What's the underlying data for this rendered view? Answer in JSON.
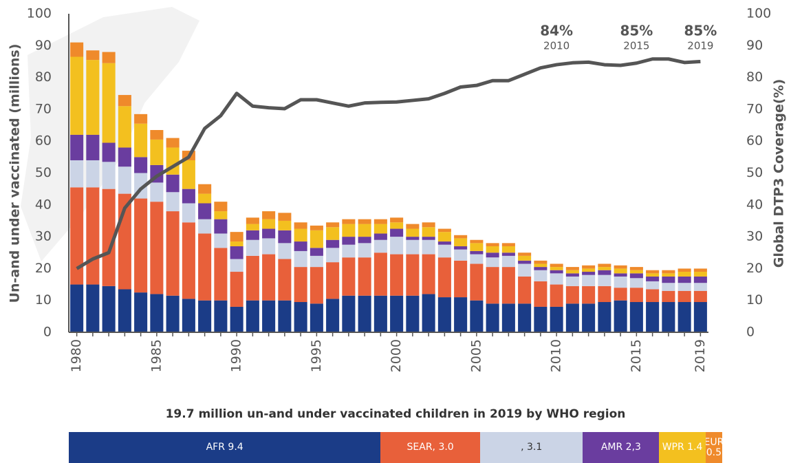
{
  "chart_data": [
    {
      "type": "stacked-bar-line",
      "y_label": "Un-and under vaccinated (millions)",
      "y2_label": "Global DTP3 Coverage(%)",
      "x": [
        1980,
        1981,
        1982,
        1983,
        1984,
        1985,
        1986,
        1987,
        1988,
        1989,
        1990,
        1991,
        1992,
        1993,
        1994,
        1995,
        1996,
        1997,
        1998,
        1999,
        2000,
        2001,
        2002,
        2003,
        2004,
        2005,
        2006,
        2007,
        2008,
        2009,
        2010,
        2011,
        2012,
        2013,
        2014,
        2015,
        2016,
        2017,
        2018,
        2019
      ],
      "xlim": [
        1979.5,
        2019.5
      ],
      "xticks": [
        1980,
        1985,
        1990,
        1995,
        2000,
        2005,
        2010,
        2015,
        2019
      ],
      "ylim": [
        0,
        100
      ],
      "yticks": [
        0,
        10,
        20,
        30,
        40,
        50,
        60,
        70,
        80,
        90,
        100
      ],
      "y2lim": [
        0,
        100
      ],
      "y2ticks": [
        0,
        10,
        20,
        30,
        40,
        50,
        60,
        70,
        80,
        90,
        100
      ],
      "series": [
        {
          "color": "#1b3c87",
          "values": [
            15,
            15,
            14.5,
            13.5,
            12.5,
            12,
            11.5,
            10.5,
            10,
            10,
            8,
            10,
            10,
            10,
            9.5,
            9,
            10.5,
            11.5,
            11.5,
            11.5,
            11.5,
            11.5,
            12,
            11,
            11,
            10,
            9,
            9,
            9,
            8,
            8,
            9,
            9,
            9.5,
            10,
            9.5,
            9.5,
            9.5,
            9.5,
            9.5
          ]
        },
        {
          "color": "#e8603a",
          "values": [
            30.5,
            30.5,
            30.5,
            30,
            29.5,
            29,
            26.5,
            24,
            21,
            16.5,
            11,
            14,
            14.5,
            13,
            11,
            11.5,
            11.5,
            12,
            12,
            13.5,
            13,
            13,
            12.5,
            12.5,
            11.5,
            11.5,
            11.5,
            11.5,
            8.5,
            8,
            7,
            5.5,
            5.5,
            5,
            4,
            4.5,
            4,
            3.5,
            3.5,
            3.5
          ]
        },
        {
          "color": "#cbd4e6",
          "values": [
            8.5,
            8.5,
            8.5,
            8.5,
            8,
            6,
            6,
            6,
            4.5,
            4.5,
            4,
            5,
            5,
            5,
            5,
            3.5,
            4.5,
            4,
            4.5,
            4,
            5.5,
            4.5,
            4.5,
            4,
            3.5,
            3,
            3,
            3.5,
            4,
            3.5,
            3.5,
            3,
            3.5,
            3.5,
            3.5,
            3,
            2.5,
            2.5,
            2.5,
            2.5
          ]
        },
        {
          "color": "#6a3d9f",
          "values": [
            8,
            8,
            6,
            6,
            5,
            5.5,
            5.5,
            4.5,
            5,
            4.5,
            4,
            3,
            3,
            4,
            3,
            2.5,
            2.5,
            2.5,
            2,
            2,
            2.5,
            1,
            1,
            1,
            1,
            1,
            1.5,
            1,
            1,
            1,
            1,
            1,
            1,
            1.5,
            1,
            1.5,
            1.5,
            2,
            2,
            2
          ]
        },
        {
          "color": "#f3c01f",
          "values": [
            24.5,
            23.5,
            25,
            13,
            10.5,
            8,
            8.5,
            9,
            3,
            2.5,
            1.5,
            2,
            3,
            3,
            4,
            5.5,
            4,
            4,
            4,
            3,
            2,
            2.5,
            3,
            3,
            2.5,
            2.5,
            2,
            2,
            1.5,
            1,
            1,
            1,
            1,
            1,
            1.5,
            1,
            1,
            1,
            1.5,
            1.5
          ]
        },
        {
          "color": "#ef8a2b",
          "values": [
            4.5,
            3,
            3.5,
            3.5,
            3,
            3,
            3,
            3,
            3,
            3,
            3,
            2,
            2.5,
            2.5,
            2,
            1.5,
            1.5,
            1.5,
            1.5,
            1.5,
            1.5,
            1.5,
            1.5,
            1,
            1,
            1,
            1,
            1,
            1,
            1,
            1,
            1,
            1,
            1,
            1,
            1,
            1,
            1,
            1,
            1
          ]
        },
        {
          "color": "#555555",
          "axis": "y2",
          "values": [
            20,
            23,
            25,
            39,
            45,
            49,
            52,
            55,
            64,
            68,
            75,
            71,
            70.5,
            70.2,
            73,
            73,
            72,
            71,
            72,
            72.2,
            72.3,
            72.8,
            73.3,
            75,
            77,
            77.5,
            79,
            79,
            81,
            83,
            84,
            84.6,
            84.8,
            84,
            83.8,
            84.5,
            85.8,
            85.8,
            84.7,
            85
          ]
        }
      ],
      "annotations": [
        {
          "label": "84%",
          "x": 2010
        },
        {
          "label": "85%",
          "x": 2015
        },
        {
          "label": "85%",
          "x": 2019
        }
      ]
    },
    {
      "type": "strip",
      "title": "19.7 million un-and under vaccinated children in 2019 by WHO region",
      "values": [
        9.4,
        3.0,
        3.1,
        2.3,
        1.4,
        0.5
      ],
      "value_labels": [
        "AFR 9.4",
        "SEAR, 3.0",
        ", 3.1",
        "AMR 2,3",
        "WPR 1.4",
        "EUR 0.5"
      ],
      "colors": [
        "#1b3c87",
        "#e8603a",
        "#cbd4e6",
        "#6a3d9f",
        "#f3c01f",
        "#ef8a2b"
      ]
    }
  ]
}
